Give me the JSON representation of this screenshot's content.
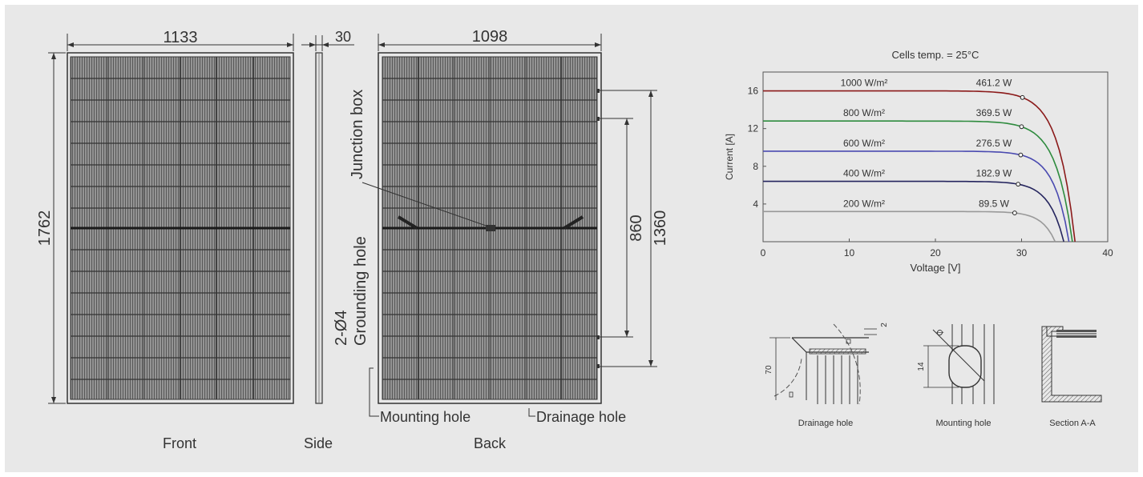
{
  "drawings": {
    "front": {
      "width_dim": "1133",
      "height_dim": "1762",
      "caption": "Front"
    },
    "side": {
      "thickness_dim": "30",
      "caption": "Side"
    },
    "back": {
      "width_dim": "1098",
      "inner_dim": "860",
      "outer_dim": "1360",
      "junction_box_label": "Junction box",
      "grounding_hole_label_1": "2-Ø4",
      "grounding_hole_label_2": "Grounding hole",
      "mounting_hole_label": "Mounting hole",
      "drainage_hole_label": "Drainage hole",
      "caption": "Back"
    }
  },
  "details": {
    "drainage": {
      "caption": "Drainage hole",
      "dim_height": "70",
      "dim_small": "2"
    },
    "mounting": {
      "caption": "Mounting hole",
      "dim_height": "14",
      "dim_dia": "Ø"
    },
    "section": {
      "caption": "Section A-A"
    }
  },
  "chart_data": {
    "type": "line",
    "title": "Cells temp. = 25°C",
    "xlabel": "Voltage [V]",
    "ylabel": "Current [A]",
    "xlim": [
      0,
      40
    ],
    "ylim": [
      0,
      18
    ],
    "xticks": [
      0,
      10,
      20,
      30,
      40
    ],
    "yticks": [
      4,
      8,
      12,
      16
    ],
    "series": [
      {
        "name": "1000 W/m²",
        "power_label": "461.2 W",
        "color": "#8b1a1a",
        "isc": 16.0,
        "voc": 36.2,
        "mpp": [
          30.1,
          15.3
        ]
      },
      {
        "name": "800 W/m²",
        "power_label": "369.5 W",
        "color": "#2e8b3e",
        "isc": 12.8,
        "voc": 35.9,
        "mpp": [
          30.0,
          12.2
        ]
      },
      {
        "name": "600 W/m²",
        "power_label": "276.5 W",
        "color": "#4a4ab0",
        "isc": 9.6,
        "voc": 35.5,
        "mpp": [
          29.9,
          9.2
        ]
      },
      {
        "name": "400 W/m²",
        "power_label": "182.9 W",
        "color": "#25255e",
        "isc": 6.4,
        "voc": 34.9,
        "mpp": [
          29.6,
          6.1
        ]
      },
      {
        "name": "200 W/m²",
        "power_label": "89.5 W",
        "color": "#999999",
        "isc": 3.2,
        "voc": 33.9,
        "mpp": [
          29.2,
          3.05
        ]
      }
    ]
  }
}
